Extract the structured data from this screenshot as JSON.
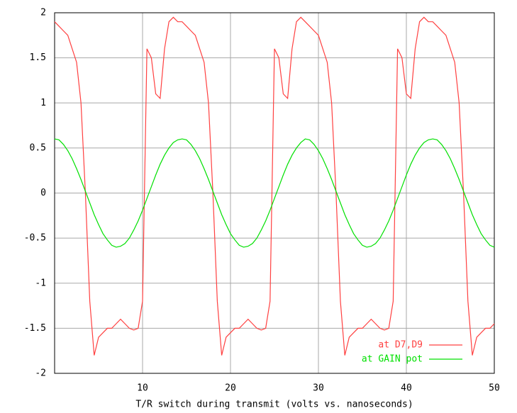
{
  "chart_data": {
    "type": "line",
    "x_label": "T/R switch during transmit (volts vs. nanoseconds)",
    "x": [
      0,
      0.5,
      1,
      1.5,
      2,
      2.5,
      3,
      3.5,
      4,
      4.5,
      5,
      5.5,
      6,
      6.5,
      7,
      7.5,
      8,
      8.5,
      9,
      9.5,
      10,
      10.5,
      11,
      11.5,
      12,
      12.5,
      13,
      13.5,
      14,
      14.5,
      15,
      15.5,
      16,
      16.5,
      17,
      17.5,
      18,
      18.5,
      19,
      19.5,
      20,
      20.5,
      21,
      21.5,
      22,
      22.5,
      23,
      23.5,
      24,
      24.5,
      25,
      25.5,
      26,
      26.5,
      27,
      27.5,
      28,
      28.5,
      29,
      29.5,
      30,
      30.5,
      31,
      31.5,
      32,
      32.5,
      33,
      33.5,
      34,
      34.5,
      35,
      35.5,
      36,
      36.5,
      37,
      37.5,
      38,
      38.5,
      39,
      39.5,
      40,
      40.5,
      41,
      41.5,
      42,
      42.5,
      43,
      43.5,
      44,
      44.5,
      45,
      45.5,
      46,
      46.5,
      47,
      47.5,
      48,
      48.5,
      49,
      49.5,
      50
    ],
    "series": [
      {
        "name": "at D7,D9",
        "color": "#ff4040",
        "values": [
          1.9,
          1.85,
          1.8,
          1.75,
          1.6,
          1.45,
          1,
          0,
          -1.2,
          -1.8,
          -1.6,
          -1.55,
          -1.5,
          -1.5,
          -1.45,
          -1.4,
          -1.45,
          -1.5,
          -1.52,
          -1.5,
          -1.2,
          1.6,
          1.5,
          1.1,
          1.05,
          1.6,
          1.9,
          1.95,
          1.9,
          1.9,
          1.85,
          1.8,
          1.75,
          1.6,
          1.45,
          1,
          0,
          -1.2,
          -1.8,
          -1.6,
          -1.55,
          -1.5,
          -1.5,
          -1.45,
          -1.4,
          -1.45,
          -1.5,
          -1.52,
          -1.5,
          -1.2,
          1.6,
          1.5,
          1.1,
          1.05,
          1.6,
          1.9,
          1.95,
          1.9,
          1.85,
          1.8,
          1.75,
          1.6,
          1.45,
          1,
          0,
          -1.2,
          -1.8,
          -1.6,
          -1.55,
          -1.5,
          -1.5,
          -1.45,
          -1.4,
          -1.45,
          -1.5,
          -1.52,
          -1.5,
          -1.2,
          1.6,
          1.5,
          1.1,
          1.05,
          1.6,
          1.9,
          1.95,
          1.9,
          1.9,
          1.85,
          1.8,
          1.75,
          1.6,
          1.45,
          1,
          0,
          -1.2,
          -1.8,
          -1.6,
          -1.55,
          -1.5,
          -1.5,
          -1.45
        ]
      },
      {
        "name": "at GAIN pot",
        "color": "#00e000",
        "values": [
          0.6,
          0.59,
          0.54,
          0.47,
          0.38,
          0.27,
          0.15,
          0.02,
          -0.11,
          -0.24,
          -0.35,
          -0.45,
          -0.52,
          -0.58,
          -0.6,
          -0.59,
          -0.56,
          -0.5,
          -0.41,
          -0.31,
          -0.19,
          -0.06,
          0.07,
          0.2,
          0.32,
          0.42,
          0.5,
          0.56,
          0.59,
          0.6,
          0.59,
          0.54,
          0.47,
          0.38,
          0.27,
          0.15,
          0.02,
          -0.11,
          -0.24,
          -0.35,
          -0.45,
          -0.52,
          -0.58,
          -0.6,
          -0.59,
          -0.56,
          -0.5,
          -0.41,
          -0.31,
          -0.19,
          -0.06,
          0.07,
          0.2,
          0.32,
          0.42,
          0.5,
          0.56,
          0.6,
          0.59,
          0.54,
          0.47,
          0.38,
          0.27,
          0.15,
          0.02,
          -0.11,
          -0.24,
          -0.35,
          -0.45,
          -0.52,
          -0.58,
          -0.6,
          -0.59,
          -0.56,
          -0.5,
          -0.41,
          -0.31,
          -0.19,
          -0.06,
          0.07,
          0.2,
          0.32,
          0.42,
          0.5,
          0.56,
          0.59,
          0.6,
          0.59,
          0.54,
          0.47,
          0.38,
          0.27,
          0.15,
          0.02,
          -0.11,
          -0.24,
          -0.35,
          -0.45,
          -0.52,
          -0.58,
          -0.6
        ]
      }
    ],
    "xlim": [
      0,
      50
    ],
    "xticks": [
      10,
      20,
      30,
      40,
      50
    ],
    "ylim": [
      -2,
      2
    ],
    "yticks": [
      -2,
      -1.5,
      -1,
      -0.5,
      0,
      0.5,
      1,
      1.5,
      2
    ],
    "grid": true,
    "legend": "lower right"
  }
}
